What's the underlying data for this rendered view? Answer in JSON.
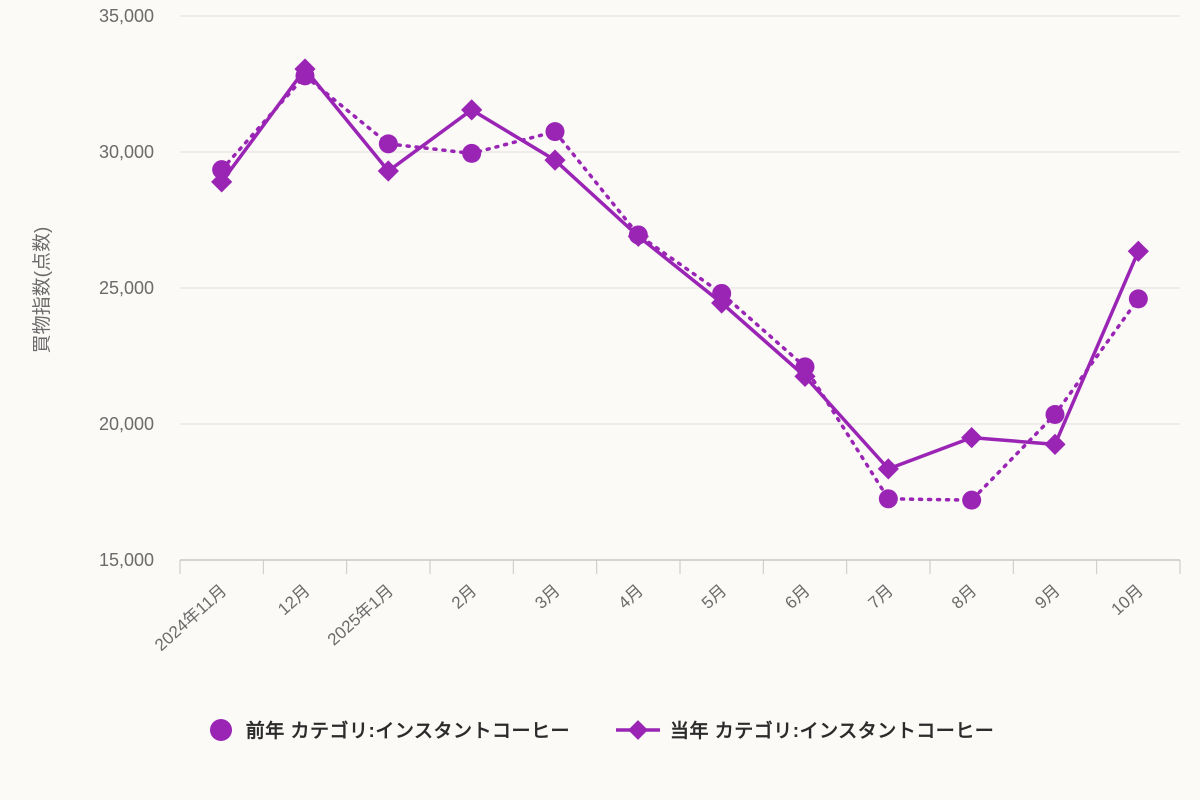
{
  "chart_data": {
    "type": "line",
    "title": "",
    "xlabel": "",
    "ylabel": "買物指数(点数)",
    "ylim": [
      15000,
      35000
    ],
    "yticks": [
      15000,
      20000,
      25000,
      30000,
      35000
    ],
    "grid": true,
    "legend_position": "bottom",
    "categories": [
      "2024年11月",
      "12月",
      "2025年1月",
      "2月",
      "3月",
      "4月",
      "5月",
      "6月",
      "7月",
      "8月",
      "9月",
      "10月"
    ],
    "series": [
      {
        "name": "前年 カテゴリ:インスタントコーヒー",
        "marker": "circle",
        "line_style": "dotted",
        "color": "#9a25b5",
        "values": [
          29350,
          32800,
          30300,
          29950,
          30750,
          26950,
          24800,
          22100,
          17250,
          17200,
          20350,
          24600
        ]
      },
      {
        "name": "当年 カテゴリ:インスタントコーヒー",
        "marker": "diamond",
        "line_style": "solid",
        "color": "#9a25b5",
        "values": [
          28900,
          33050,
          29300,
          31550,
          29700,
          26900,
          24450,
          21750,
          18350,
          19500,
          19250,
          26350
        ]
      }
    ]
  },
  "colors": {
    "accent": "#9a25b5",
    "grid": "#e2e0dd",
    "axis": "#c9c7c3",
    "tick_text": "#6b6b6b",
    "legend_text": "#2b2b2b",
    "background": "#fbfaf7"
  }
}
